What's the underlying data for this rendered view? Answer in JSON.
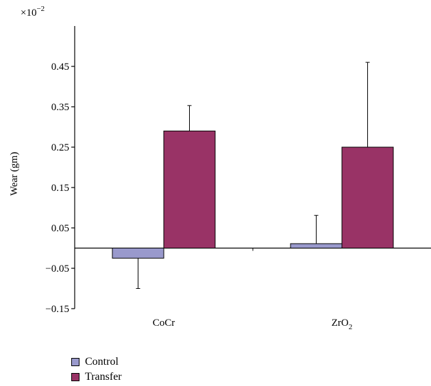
{
  "chart_data": {
    "type": "bar",
    "title": "",
    "ylabel": "Wear (gm)",
    "xlabel": "",
    "scale_label": {
      "base": "×10",
      "exp": "−2"
    },
    "ylim": [
      -0.15,
      0.55
    ],
    "yticks": [
      -0.15,
      -0.05,
      0.05,
      0.15,
      0.25,
      0.35,
      0.45
    ],
    "ytick_labels": [
      "−0.15",
      "−0.05",
      "0.05",
      "0.15",
      "0.25",
      "0.35",
      "0.45"
    ],
    "categories": [
      {
        "label": "CoCr",
        "sub": ""
      },
      {
        "label": "ZrO",
        "sub": "2"
      }
    ],
    "series": [
      {
        "name": "Control",
        "color": "#9999CC",
        "values": [
          -0.025,
          0.011
        ],
        "errors": [
          0.075,
          0.07
        ]
      },
      {
        "name": "Transfer",
        "color": "#993366",
        "values": [
          0.29,
          0.25
        ],
        "errors": [
          0.063,
          0.21
        ]
      }
    ],
    "grid": false,
    "legend_position": "bottom-left"
  }
}
